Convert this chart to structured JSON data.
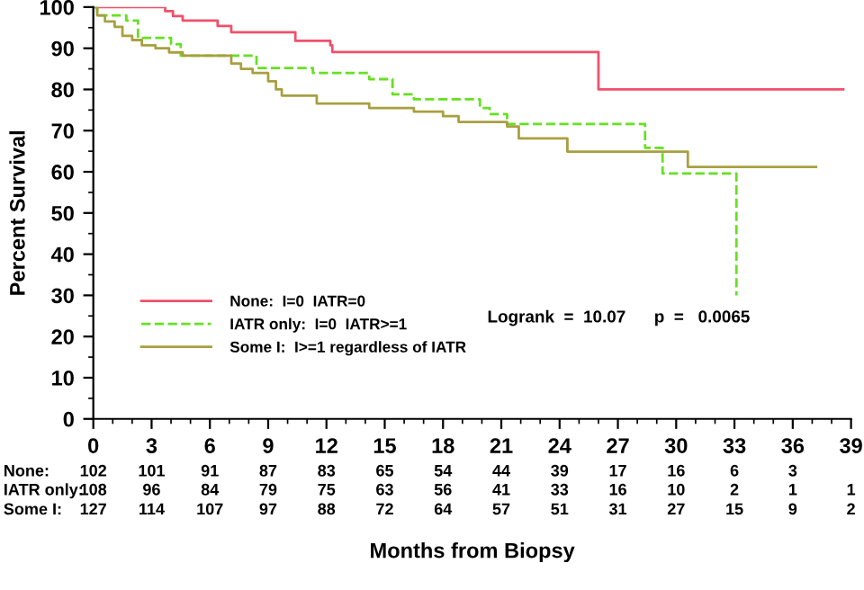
{
  "chart_data": {
    "type": "step",
    "ylabel": "Percent Survival",
    "xlabel": "Months from Biopsy",
    "xlim": [
      0,
      39
    ],
    "xticks": [
      0,
      3,
      6,
      9,
      12,
      15,
      18,
      21,
      24,
      27,
      30,
      33,
      36,
      39
    ],
    "ylim": [
      0,
      100
    ],
    "yticks": [
      0,
      10,
      20,
      30,
      40,
      50,
      60,
      70,
      80,
      90,
      100
    ],
    "grid": false,
    "legend": "bottom left",
    "line_style": "solid",
    "series": [
      {
        "name": "None:  I=0  IATR=0",
        "color": "#f0506a",
        "x": [
          0,
          3.7,
          4.1,
          4.6,
          6.4,
          7.1,
          10.4,
          12.2,
          12.3,
          26.0,
          38.6
        ],
        "values": [
          100,
          99,
          97.8,
          96.7,
          95.4,
          93.9,
          91.8,
          90.7,
          89.1,
          80,
          80
        ]
      },
      {
        "name": "IATR only:  I=0  IATR>=1",
        "color": "#66e022",
        "line_style": "dashed",
        "x": [
          0,
          0.2,
          1.7,
          2.3,
          4.0,
          4.5,
          8.4,
          11.3,
          14.2,
          15.4,
          16.5,
          19.9,
          20.4,
          21.3,
          28.4,
          29.3,
          33.1
        ],
        "values": [
          100,
          98,
          96.7,
          92.5,
          91,
          88.2,
          85.2,
          84,
          82.5,
          78.8,
          77.6,
          75.5,
          74,
          71.6,
          65.8,
          59.6,
          30
        ]
      },
      {
        "name": "Some I:  I>=1 regardless of IATR",
        "color": "#a8a040",
        "x": [
          0,
          0.2,
          0.6,
          1.1,
          1.5,
          2.0,
          2.5,
          3.2,
          3.9,
          4.6,
          7.1,
          7.6,
          8.2,
          9.0,
          9.4,
          9.7,
          11.5,
          14.2,
          16.5,
          18.0,
          18.8,
          21.3,
          21.9,
          24.4,
          30.6,
          37.2
        ],
        "values": [
          100,
          98,
          96.5,
          95.2,
          93,
          92,
          90.7,
          90,
          89,
          88.2,
          86.3,
          85,
          84,
          82,
          80,
          78.5,
          76.6,
          75.5,
          74.6,
          73.5,
          72.1,
          71,
          68.1,
          64.9,
          61.2,
          61.2
        ]
      }
    ],
    "annotations": [
      "Logrank  =  10.07      p  =   0.0065",
      "None:",
      "102 101 91 87 83 65 54 44 39 17 16 6 3",
      "IATR only:",
      "108 96 84 79 75 63 56 41 33 16 10 2 1 1",
      "Some I:",
      "127 114 107 97 88 72 64 57 51 31 27 15 9 2"
    ]
  }
}
